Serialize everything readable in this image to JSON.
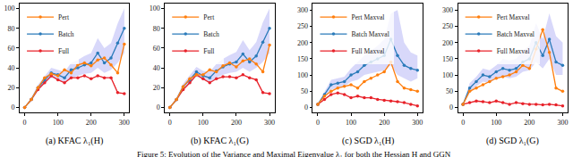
{
  "caption": "Figure 5: Evolution of the Variance and Maximal Eigenvalue λ₁ for both the Hessian H and GGN",
  "chart_data": [
    {
      "type": "line",
      "title": "(a) KFAC λ₁(H)",
      "legend": "upper left",
      "grid": false,
      "x": [
        0,
        20,
        40,
        60,
        80,
        100,
        120,
        140,
        160,
        180,
        200,
        220,
        240,
        260,
        280,
        300
      ],
      "xlim": [
        -15,
        315
      ],
      "xticks": [
        0,
        100,
        200,
        300
      ],
      "ylim": [
        -5,
        105
      ],
      "yticks": [
        0,
        20,
        40,
        60,
        80,
        100
      ],
      "series": [
        {
          "name": "Full",
          "color": "#e8222a",
          "marker": "circle",
          "values": [
            0,
            8,
            18,
            25,
            32,
            28,
            25,
            30,
            30,
            32,
            29,
            32,
            30,
            30,
            15,
            14
          ]
        },
        {
          "name": "Batch",
          "color": "#2b7bba",
          "marker": "circle",
          "values": [
            0,
            8,
            20,
            28,
            35,
            33,
            30,
            38,
            40,
            43,
            45,
            55,
            45,
            50,
            65,
            80
          ],
          "band_lower": [
            0,
            6,
            17,
            24,
            30,
            28,
            25,
            30,
            32,
            34,
            35,
            40,
            35,
            38,
            45,
            55
          ],
          "band_upper": [
            0,
            10,
            23,
            32,
            40,
            38,
            36,
            45,
            48,
            52,
            55,
            70,
            60,
            65,
            85,
            100
          ],
          "band_color": "#8f8ff0"
        },
        {
          "name": "Pert",
          "color": "#ff7f0e",
          "marker": "circle",
          "values": [
            0,
            8,
            20,
            30,
            34,
            32,
            38,
            35,
            43,
            45,
            42,
            48,
            50,
            43,
            35,
            64
          ]
        }
      ]
    },
    {
      "type": "line",
      "title": "(b) KFAC λ₁(G)",
      "legend": "upper left",
      "grid": false,
      "x": [
        0,
        20,
        40,
        60,
        80,
        100,
        120,
        140,
        160,
        180,
        200,
        220,
        240,
        260,
        280,
        300
      ],
      "xlim": [
        -15,
        315
      ],
      "xticks": [
        0,
        100,
        200,
        300
      ],
      "ylim": [
        -5,
        105
      ],
      "yticks": [
        0,
        20,
        40,
        60,
        80,
        100
      ],
      "series": [
        {
          "name": "Full",
          "color": "#e8222a",
          "marker": "circle",
          "values": [
            0,
            8,
            18,
            25,
            33,
            29,
            25,
            29,
            31,
            31,
            30,
            33,
            30,
            28,
            15,
            14
          ]
        },
        {
          "name": "Batch",
          "color": "#2b7bba",
          "marker": "circle",
          "values": [
            0,
            8,
            21,
            28,
            36,
            32,
            30,
            37,
            41,
            44,
            46,
            54,
            46,
            52,
            66,
            80
          ],
          "band_lower": [
            0,
            6,
            18,
            24,
            31,
            28,
            25,
            30,
            33,
            35,
            36,
            40,
            36,
            40,
            46,
            55
          ],
          "band_upper": [
            0,
            10,
            24,
            32,
            41,
            37,
            36,
            44,
            49,
            53,
            56,
            68,
            58,
            66,
            86,
            100
          ],
          "band_color": "#8f8ff0"
        },
        {
          "name": "Pert",
          "color": "#ff7f0e",
          "marker": "circle",
          "values": [
            0,
            8,
            21,
            29,
            33,
            33,
            38,
            36,
            42,
            45,
            41,
            47,
            49,
            44,
            36,
            63
          ]
        }
      ]
    },
    {
      "type": "line",
      "title": "(c) SGD λ₁(H)",
      "legend": "upper left",
      "grid": false,
      "x": [
        0,
        20,
        40,
        60,
        80,
        100,
        120,
        140,
        160,
        180,
        200,
        220,
        240,
        260,
        280,
        300
      ],
      "xlim": [
        -15,
        315
      ],
      "xticks": [
        0,
        100,
        200,
        300
      ],
      "ylim": [
        -15,
        320
      ],
      "yticks": [
        0,
        50,
        100,
        150,
        200,
        250,
        300
      ],
      "series": [
        {
          "name": "Full Maxval",
          "color": "#e8222a",
          "marker": "circle",
          "values": [
            10,
            25,
            40,
            45,
            40,
            30,
            35,
            30,
            30,
            25,
            22,
            20,
            18,
            15,
            10,
            5
          ]
        },
        {
          "name": "Batch Maxval",
          "color": "#2b7bba",
          "marker": "circle",
          "values": [
            10,
            40,
            70,
            75,
            80,
            100,
            110,
            130,
            140,
            150,
            160,
            210,
            160,
            130,
            120,
            115
          ],
          "band_lower": [
            8,
            30,
            55,
            60,
            65,
            80,
            85,
            100,
            105,
            110,
            115,
            130,
            100,
            90,
            80,
            90
          ],
          "band_upper": [
            12,
            50,
            85,
            90,
            95,
            120,
            140,
            160,
            175,
            190,
            210,
            290,
            300,
            200,
            170,
            160
          ],
          "band_color": "#8f8ff0"
        },
        {
          "name": "Pert Maxval",
          "color": "#ff7f0e",
          "marker": "circle",
          "values": [
            10,
            35,
            50,
            60,
            65,
            70,
            60,
            80,
            90,
            100,
            110,
            140,
            80,
            60,
            55,
            50
          ]
        }
      ]
    },
    {
      "type": "line",
      "title": "(d) SGD λ₁(G)",
      "legend": "upper left",
      "grid": false,
      "x": [
        0,
        20,
        40,
        60,
        80,
        100,
        120,
        140,
        160,
        180,
        200,
        220,
        240,
        260,
        280,
        300
      ],
      "xlim": [
        -15,
        315
      ],
      "xticks": [
        0,
        100,
        200,
        300
      ],
      "ylim": [
        -15,
        320
      ],
      "yticks": [
        0,
        50,
        100,
        150,
        200,
        250,
        300
      ],
      "series": [
        {
          "name": "Full Maxval",
          "color": "#e8222a",
          "marker": "circle",
          "values": [
            10,
            15,
            20,
            18,
            15,
            20,
            15,
            10,
            15,
            12,
            10,
            10,
            8,
            10,
            8,
            5
          ]
        },
        {
          "name": "Batch Maxval",
          "color": "#2b7bba",
          "marker": "circle",
          "values": [
            10,
            60,
            80,
            100,
            95,
            110,
            120,
            115,
            120,
            140,
            150,
            200,
            160,
            210,
            140,
            130
          ],
          "band_lower": [
            8,
            45,
            65,
            80,
            75,
            90,
            95,
            90,
            95,
            110,
            115,
            140,
            120,
            150,
            100,
            100
          ],
          "band_upper": [
            12,
            75,
            95,
            120,
            115,
            130,
            150,
            145,
            150,
            175,
            190,
            260,
            210,
            290,
            220,
            200
          ],
          "band_color": "#8f8ff0"
        },
        {
          "name": "Pert Maxval",
          "color": "#ff7f0e",
          "marker": "circle",
          "values": [
            10,
            50,
            60,
            70,
            80,
            90,
            95,
            100,
            110,
            130,
            120,
            180,
            240,
            170,
            60,
            50
          ]
        }
      ]
    }
  ]
}
